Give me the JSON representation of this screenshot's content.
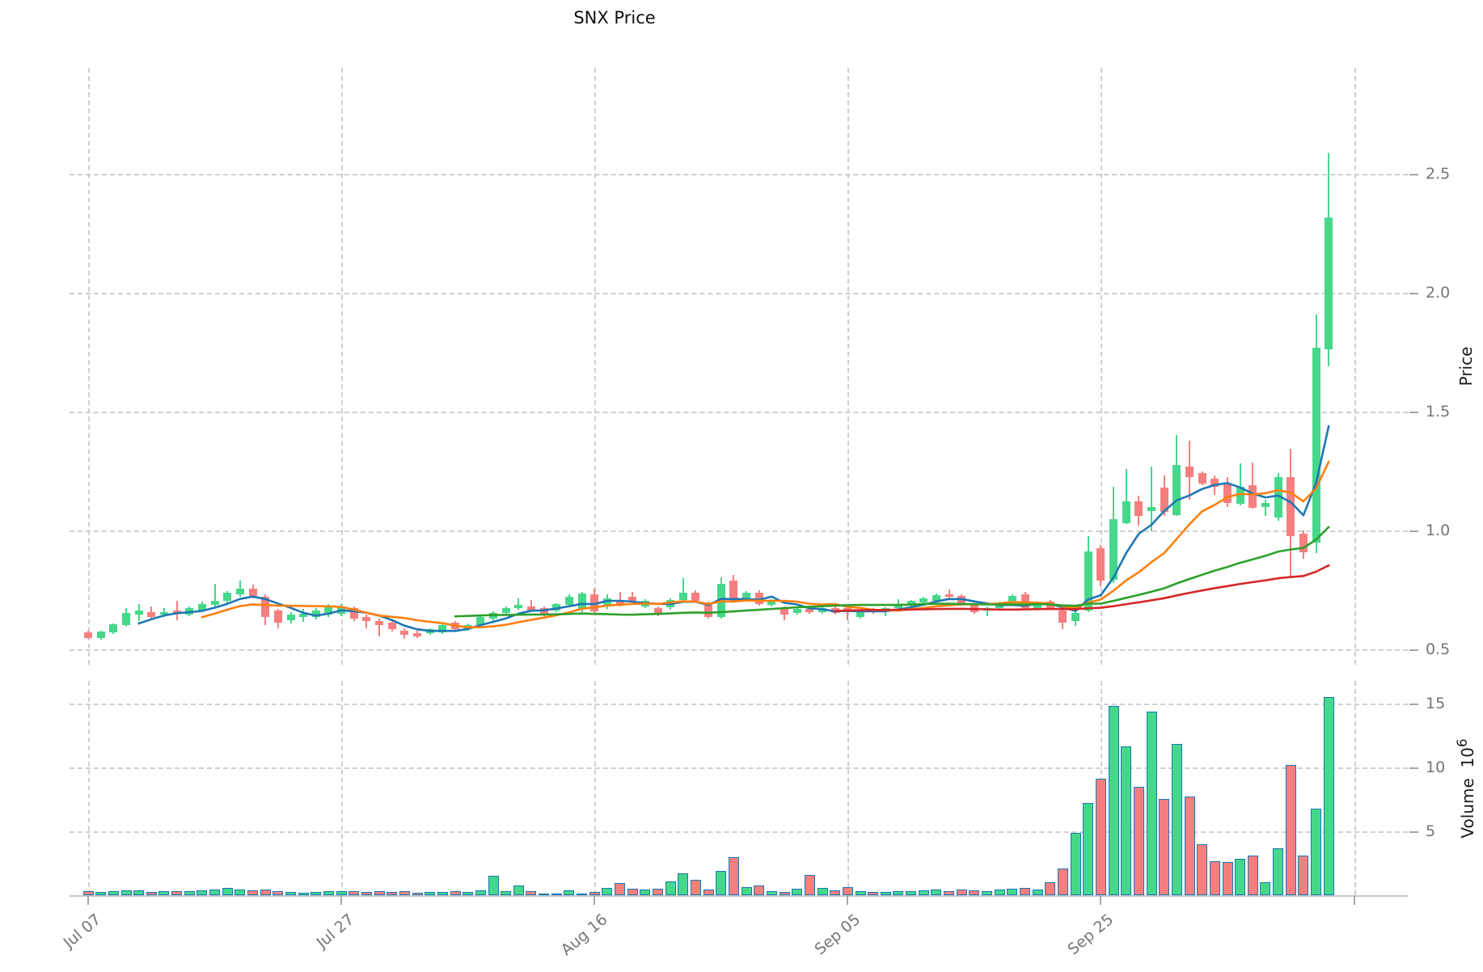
{
  "title": "SNX Price",
  "axes": {
    "price": {
      "label": "Price",
      "ticks": [
        0.5,
        1.0,
        1.5,
        2.0,
        2.5
      ]
    },
    "volume": {
      "label_text": "Volume",
      "unit_base": "10",
      "unit_exp": "6",
      "ticks": [
        5,
        10,
        15
      ]
    },
    "x": {
      "tick_labels": [
        "Jul 07",
        "Jul 27",
        "Aug 16",
        "Sep 05",
        "Sep 25"
      ],
      "tick_days": [
        0,
        20,
        40,
        60,
        80
      ],
      "gridline_days": [
        0,
        20,
        40,
        60,
        80,
        100
      ]
    }
  },
  "colors": {
    "up": "#45d88a",
    "down": "#f57f7f",
    "volume_edge": "#1878b4",
    "grid": "#cfcfcf",
    "tick_text": "#757575",
    "ma": [
      "#1f77b4",
      "#ff7f0e",
      "#2ca02c",
      "#d62728"
    ]
  },
  "chart_data": {
    "type": "candlestick+volume",
    "title": "SNX Price",
    "ylabel": "Price",
    "ylabel2": "Volume 10^6",
    "price_ylim": [
      0.44,
      2.95
    ],
    "volume_ylim_millions": [
      0,
      16.8
    ],
    "grid": "dashed",
    "moving_average_periods": [
      5,
      10,
      30,
      60
    ],
    "dates": [
      "Jul 07",
      "Jul 08",
      "Jul 09",
      "Jul 10",
      "Jul 11",
      "Jul 12",
      "Jul 13",
      "Jul 14",
      "Jul 15",
      "Jul 16",
      "Jul 17",
      "Jul 18",
      "Jul 19",
      "Jul 20",
      "Jul 21",
      "Jul 22",
      "Jul 23",
      "Jul 24",
      "Jul 25",
      "Jul 26",
      "Jul 27",
      "Jul 28",
      "Jul 29",
      "Jul 30",
      "Jul 31",
      "Aug 01",
      "Aug 02",
      "Aug 03",
      "Aug 04",
      "Aug 05",
      "Aug 06",
      "Aug 07",
      "Aug 08",
      "Aug 09",
      "Aug 10",
      "Aug 11",
      "Aug 12",
      "Aug 13",
      "Aug 14",
      "Aug 15",
      "Aug 16",
      "Aug 17",
      "Aug 18",
      "Aug 19",
      "Aug 20",
      "Aug 21",
      "Aug 22",
      "Aug 23",
      "Aug 24",
      "Aug 25",
      "Aug 26",
      "Aug 27",
      "Aug 28",
      "Aug 29",
      "Aug 30",
      "Aug 31",
      "Sep 01",
      "Sep 02",
      "Sep 03",
      "Sep 04",
      "Sep 05",
      "Sep 06",
      "Sep 07",
      "Sep 08",
      "Sep 09",
      "Sep 10",
      "Sep 11",
      "Sep 12",
      "Sep 13",
      "Sep 14",
      "Sep 15",
      "Sep 16",
      "Sep 17",
      "Sep 18",
      "Sep 19",
      "Sep 20",
      "Sep 21",
      "Sep 22",
      "Sep 23",
      "Sep 24",
      "Sep 25",
      "Sep 26",
      "Sep 27",
      "Sep 28",
      "Sep 29",
      "Sep 30",
      "Oct 01",
      "Oct 02",
      "Oct 03",
      "Oct 04",
      "Oct 05",
      "Oct 06",
      "Oct 07",
      "Oct 08",
      "Oct 09",
      "Oct 10",
      "Oct 11",
      "Oct 12",
      "Oct 13"
    ],
    "open": [
      0.57,
      0.548,
      0.571,
      0.602,
      0.646,
      0.656,
      0.646,
      0.663,
      0.646,
      0.663,
      0.687,
      0.704,
      0.731,
      0.755,
      0.721,
      0.663,
      0.622,
      0.636,
      0.636,
      0.646,
      0.65,
      0.673,
      0.636,
      0.619,
      0.612,
      0.578,
      0.568,
      0.568,
      0.571,
      0.612,
      0.585,
      0.602,
      0.629,
      0.653,
      0.673,
      0.68,
      0.673,
      0.663,
      0.687,
      0.67,
      0.731,
      0.68,
      0.708,
      0.721,
      0.68,
      0.673,
      0.675,
      0.708,
      0.738,
      0.687,
      0.636,
      0.789,
      0.708,
      0.738,
      0.687,
      0.673,
      0.653,
      0.67,
      0.656,
      0.673,
      0.673,
      0.636,
      0.665,
      0.665,
      0.673,
      0.687,
      0.697,
      0.704,
      0.731,
      0.724,
      0.687,
      0.665,
      0.673,
      0.697,
      0.731,
      0.67,
      0.7,
      0.663,
      0.619,
      0.663,
      0.925,
      0.793,
      1.031,
      1.122,
      1.082,
      1.18,
      1.065,
      1.269,
      1.241,
      1.218,
      1.197,
      1.112,
      1.19,
      1.099,
      1.054,
      1.224,
      0.986,
      0.95,
      1.762
    ],
    "high": [
      0.578,
      0.58,
      0.61,
      0.673,
      0.69,
      0.68,
      0.672,
      0.704,
      0.68,
      0.7,
      0.776,
      0.745,
      0.789,
      0.772,
      0.73,
      0.67,
      0.655,
      0.67,
      0.675,
      0.69,
      0.692,
      0.681,
      0.645,
      0.63,
      0.62,
      0.59,
      0.58,
      0.59,
      0.61,
      0.618,
      0.61,
      0.64,
      0.66,
      0.68,
      0.714,
      0.708,
      0.68,
      0.695,
      0.73,
      0.74,
      0.755,
      0.73,
      0.741,
      0.741,
      0.712,
      0.68,
      0.715,
      0.8,
      0.748,
      0.7,
      0.802,
      0.812,
      0.745,
      0.748,
      0.71,
      0.68,
      0.675,
      0.678,
      0.68,
      0.68,
      0.681,
      0.668,
      0.675,
      0.678,
      0.71,
      0.706,
      0.722,
      0.735,
      0.752,
      0.732,
      0.695,
      0.68,
      0.7,
      0.73,
      0.74,
      0.7,
      0.708,
      0.67,
      0.66,
      0.976,
      0.94,
      1.184,
      1.258,
      1.145,
      1.269,
      1.23,
      1.401,
      1.378,
      1.25,
      1.23,
      1.224,
      1.282,
      1.286,
      1.13,
      1.24,
      1.343,
      1.0,
      1.91,
      2.588
    ],
    "low": [
      0.545,
      0.542,
      0.565,
      0.595,
      0.619,
      0.63,
      0.635,
      0.622,
      0.64,
      0.655,
      0.673,
      0.695,
      0.72,
      0.715,
      0.602,
      0.59,
      0.61,
      0.615,
      0.625,
      0.635,
      0.64,
      0.62,
      0.59,
      0.554,
      0.575,
      0.544,
      0.548,
      0.56,
      0.565,
      0.578,
      0.578,
      0.595,
      0.62,
      0.645,
      0.665,
      0.66,
      0.64,
      0.655,
      0.68,
      0.655,
      0.65,
      0.67,
      0.68,
      0.7,
      0.672,
      0.64,
      0.668,
      0.7,
      0.698,
      0.63,
      0.628,
      0.698,
      0.7,
      0.685,
      0.68,
      0.622,
      0.645,
      0.648,
      0.648,
      0.645,
      0.622,
      0.63,
      0.65,
      0.64,
      0.668,
      0.68,
      0.69,
      0.698,
      0.71,
      0.685,
      0.65,
      0.64,
      0.665,
      0.69,
      0.668,
      0.662,
      0.668,
      0.585,
      0.6,
      0.655,
      0.765,
      0.78,
      1.027,
      1.02,
      0.997,
      1.06,
      1.06,
      1.13,
      1.19,
      1.15,
      1.1,
      1.105,
      1.09,
      1.06,
      1.04,
      0.8,
      0.88,
      0.905,
      1.69
    ],
    "close": [
      0.548,
      0.575,
      0.605,
      0.653,
      0.663,
      0.636,
      0.656,
      0.653,
      0.673,
      0.69,
      0.704,
      0.738,
      0.755,
      0.724,
      0.636,
      0.612,
      0.646,
      0.65,
      0.663,
      0.68,
      0.68,
      0.629,
      0.619,
      0.602,
      0.585,
      0.561,
      0.554,
      0.585,
      0.602,
      0.585,
      0.602,
      0.636,
      0.653,
      0.673,
      0.687,
      0.663,
      0.646,
      0.69,
      0.721,
      0.735,
      0.66,
      0.714,
      0.69,
      0.704,
      0.704,
      0.646,
      0.708,
      0.738,
      0.704,
      0.636,
      0.776,
      0.704,
      0.738,
      0.69,
      0.7,
      0.646,
      0.67,
      0.656,
      0.673,
      0.653,
      0.656,
      0.663,
      0.656,
      0.673,
      0.69,
      0.704,
      0.714,
      0.728,
      0.721,
      0.69,
      0.656,
      0.673,
      0.69,
      0.724,
      0.673,
      0.697,
      0.673,
      0.612,
      0.653,
      0.912,
      0.789,
      1.048,
      1.122,
      1.061,
      1.099,
      1.078,
      1.275,
      1.224,
      1.197,
      1.184,
      1.116,
      1.184,
      1.095,
      1.116,
      1.224,
      0.976,
      0.908,
      1.77,
      2.316
    ],
    "volume_millions": [
      0.35,
      0.25,
      0.3,
      0.4,
      0.38,
      0.28,
      0.3,
      0.32,
      0.35,
      0.4,
      0.45,
      0.55,
      0.42,
      0.38,
      0.45,
      0.35,
      0.25,
      0.22,
      0.28,
      0.3,
      0.3,
      0.32,
      0.28,
      0.3,
      0.28,
      0.3,
      0.22,
      0.25,
      0.28,
      0.3,
      0.25,
      0.4,
      1.5,
      0.3,
      0.76,
      0.34,
      0.12,
      0.15,
      0.38,
      0.12,
      0.27,
      0.59,
      0.97,
      0.48,
      0.44,
      0.53,
      1.07,
      1.7,
      1.18,
      0.44,
      1.92,
      3.0,
      0.65,
      0.76,
      0.34,
      0.23,
      0.48,
      1.6,
      0.55,
      0.38,
      0.65,
      0.3,
      0.25,
      0.28,
      0.35,
      0.3,
      0.4,
      0.45,
      0.35,
      0.42,
      0.38,
      0.3,
      0.45,
      0.5,
      0.55,
      0.45,
      1.0,
      2.1,
      4.9,
      7.2,
      9.1,
      14.8,
      11.65,
      8.5,
      14.4,
      7.55,
      11.85,
      7.7,
      4.0,
      2.65,
      2.6,
      2.85,
      3.1,
      1.0,
      3.7,
      10.2,
      3.1,
      6.8,
      15.5
    ]
  }
}
